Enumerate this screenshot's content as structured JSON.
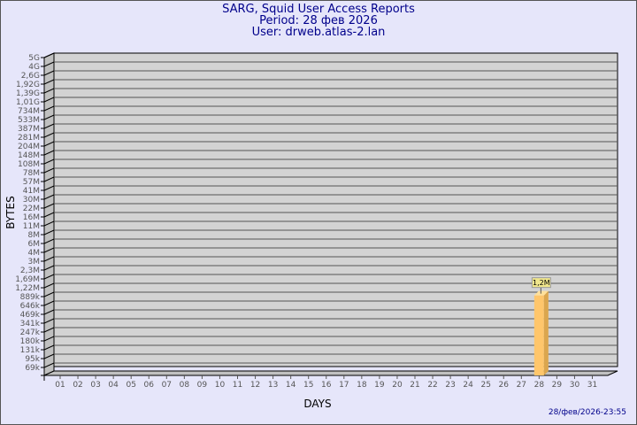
{
  "header": {
    "title": "SARG, Squid User Access Reports",
    "period": "Period: 28 фев 2026",
    "user": "User: drweb.atlas-2.lan"
  },
  "footer": {
    "timestamp": "28/фев/2026-23:55"
  },
  "chart_data": {
    "type": "bar",
    "title": "SARG, Squid User Access Reports",
    "xlabel": "DAYS",
    "ylabel": "BYTES",
    "y_scale": "log",
    "y_tick_labels": [
      "5G",
      "4G",
      "2,6G",
      "1,92G",
      "1,39G",
      "1,01G",
      "734M",
      "533M",
      "387M",
      "281M",
      "204M",
      "148M",
      "108M",
      "78M",
      "57M",
      "41M",
      "30M",
      "22M",
      "16M",
      "11M",
      "8M",
      "6M",
      "4M",
      "3M",
      "2,3M",
      "1,69M",
      "1,22M",
      "889k",
      "646k",
      "469k",
      "341k",
      "247k",
      "180k",
      "131k",
      "95k",
      "69k"
    ],
    "categories": [
      "01",
      "02",
      "03",
      "04",
      "05",
      "06",
      "07",
      "08",
      "09",
      "10",
      "11",
      "12",
      "13",
      "14",
      "15",
      "16",
      "17",
      "18",
      "19",
      "20",
      "21",
      "22",
      "23",
      "24",
      "25",
      "26",
      "27",
      "28",
      "29",
      "30",
      "31"
    ],
    "values": [
      0,
      0,
      0,
      0,
      0,
      0,
      0,
      0,
      0,
      0,
      0,
      0,
      0,
      0,
      0,
      0,
      0,
      0,
      0,
      0,
      0,
      0,
      0,
      0,
      0,
      0,
      0,
      1200000,
      0,
      0,
      0
    ],
    "data_labels": {
      "28": "1,2M"
    },
    "grid": true,
    "colors": {
      "bar_front": "#ffc66b",
      "bar_side": "#dba64e",
      "bar_top": "#ffe09a",
      "plot_bg": "#d3d3d3",
      "wall": "#c0c0c0",
      "label_bg": "#f0e68c"
    }
  }
}
